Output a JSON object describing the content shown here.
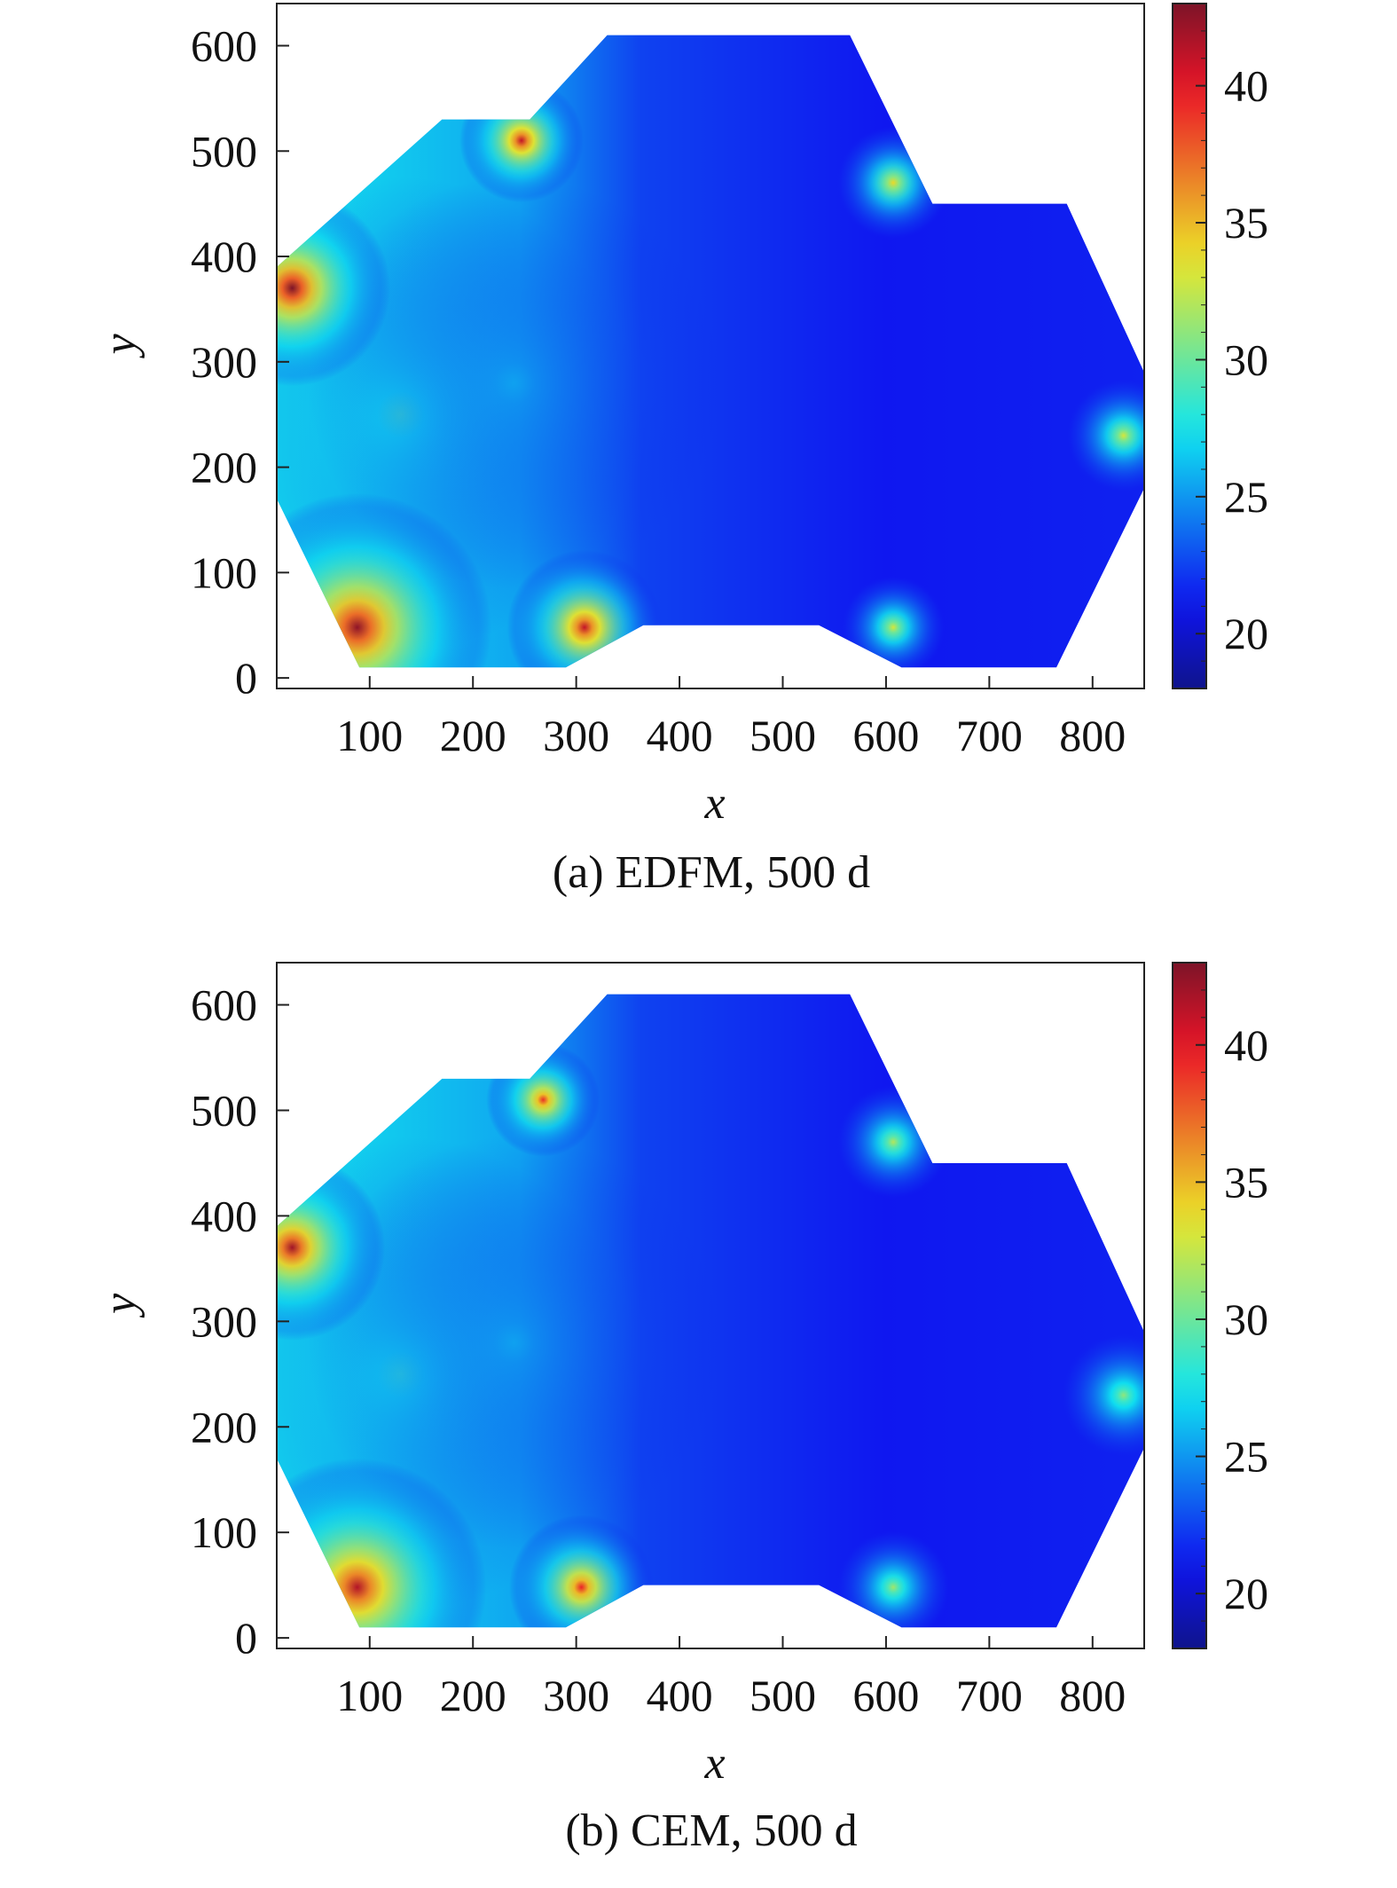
{
  "chart_data": [
    {
      "type": "heatmap",
      "caption": "(a) EDFM, 500 d",
      "xlabel": "x",
      "ylabel": "y",
      "xlim": [
        10,
        850
      ],
      "ylim": [
        -10,
        640
      ],
      "xticks": [
        100,
        200,
        300,
        400,
        500,
        600,
        700,
        800
      ],
      "yticks": [
        0,
        100,
        200,
        300,
        400,
        500,
        600
      ],
      "colorbar": {
        "min": 18,
        "max": 43,
        "ticks": [
          20,
          25,
          30,
          35,
          40
        ],
        "colormap": "jet"
      },
      "domain_outline": [
        [
          90,
          10
        ],
        [
          290,
          10
        ],
        [
          365,
          50
        ],
        [
          535,
          50
        ],
        [
          615,
          10
        ],
        [
          765,
          10
        ],
        [
          850,
          180
        ],
        [
          850,
          290
        ],
        [
          775,
          450
        ],
        [
          645,
          450
        ],
        [
          565,
          610
        ],
        [
          330,
          610
        ],
        [
          255,
          530
        ],
        [
          170,
          530
        ],
        [
          10,
          390
        ],
        [
          10,
          170
        ]
      ],
      "background_value": 21.5,
      "hotspots": [
        {
          "x": 25,
          "y": 370,
          "value": 43,
          "radius": 95
        },
        {
          "x": 88,
          "y": 48,
          "value": 42.5,
          "radius": 130
        },
        {
          "x": 247,
          "y": 510,
          "value": 41,
          "radius": 60
        },
        {
          "x": 308,
          "y": 48,
          "value": 41,
          "radius": 75
        },
        {
          "x": 607,
          "y": 470,
          "value": 34,
          "radius": 55
        },
        {
          "x": 607,
          "y": 48,
          "value": 33,
          "radius": 50
        },
        {
          "x": 830,
          "y": 230,
          "value": 33,
          "radius": 55
        },
        {
          "x": 130,
          "y": 250,
          "value": 29,
          "radius": 230
        },
        {
          "x": 240,
          "y": 280,
          "value": 25.5,
          "radius": 200
        }
      ]
    },
    {
      "type": "heatmap",
      "caption": "(b) CEM, 500 d",
      "xlabel": "x",
      "ylabel": "y",
      "xlim": [
        10,
        850
      ],
      "ylim": [
        -10,
        640
      ],
      "xticks": [
        100,
        200,
        300,
        400,
        500,
        600,
        700,
        800
      ],
      "yticks": [
        0,
        100,
        200,
        300,
        400,
        500,
        600
      ],
      "colorbar": {
        "min": 18,
        "max": 43,
        "ticks": [
          20,
          25,
          30,
          35,
          40
        ],
        "colormap": "jet"
      },
      "domain_outline": [
        [
          90,
          10
        ],
        [
          290,
          10
        ],
        [
          365,
          50
        ],
        [
          535,
          50
        ],
        [
          615,
          10
        ],
        [
          765,
          10
        ],
        [
          850,
          180
        ],
        [
          850,
          290
        ],
        [
          775,
          450
        ],
        [
          645,
          450
        ],
        [
          565,
          610
        ],
        [
          330,
          610
        ],
        [
          255,
          530
        ],
        [
          170,
          530
        ],
        [
          10,
          390
        ],
        [
          10,
          170
        ]
      ],
      "background_value": 21.5,
      "hotspots": [
        {
          "x": 25,
          "y": 370,
          "value": 42,
          "radius": 90
        },
        {
          "x": 88,
          "y": 48,
          "value": 41.5,
          "radius": 125
        },
        {
          "x": 268,
          "y": 510,
          "value": 39,
          "radius": 55
        },
        {
          "x": 305,
          "y": 48,
          "value": 39.5,
          "radius": 70
        },
        {
          "x": 607,
          "y": 470,
          "value": 32,
          "radius": 55
        },
        {
          "x": 607,
          "y": 48,
          "value": 31.5,
          "radius": 55
        },
        {
          "x": 830,
          "y": 230,
          "value": 31,
          "radius": 60
        },
        {
          "x": 130,
          "y": 250,
          "value": 28.5,
          "radius": 230
        },
        {
          "x": 240,
          "y": 280,
          "value": 25.5,
          "radius": 200
        }
      ]
    }
  ]
}
